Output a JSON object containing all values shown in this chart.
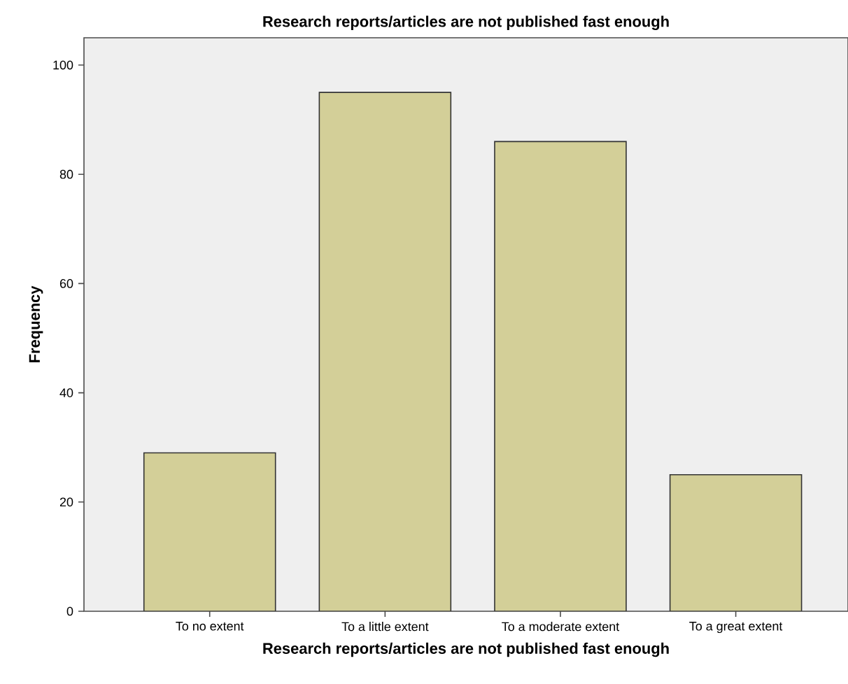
{
  "chart_data": {
    "type": "bar",
    "title": "Research reports/articles are not published fast enough",
    "xlabel": "Research reports/articles are not published fast enough",
    "ylabel": "Frequency",
    "categories": [
      "To no extent",
      "To a little extent",
      "To a moderate extent",
      "To a great extent"
    ],
    "values": [
      29,
      95,
      86,
      25
    ],
    "color": "#d3cf98",
    "ylim": [
      0,
      105
    ],
    "yticks": [
      0,
      20,
      40,
      60,
      80,
      100
    ]
  }
}
